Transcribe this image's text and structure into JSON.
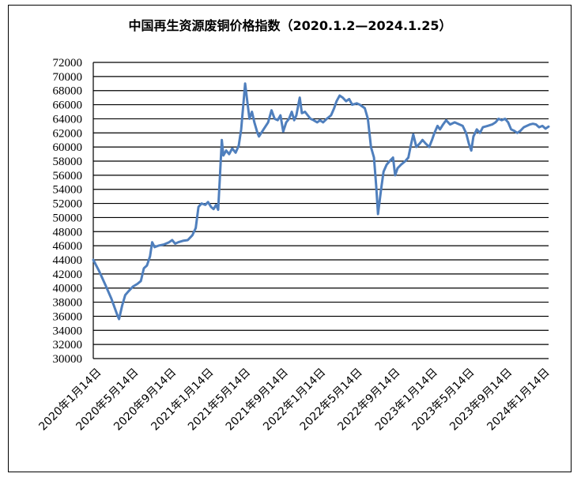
{
  "chart_data": {
    "type": "line",
    "title": "中国再生资源废铜价格指数（2020.1.2—2024.1.25）",
    "xlabel": "",
    "ylabel": "",
    "ylim": [
      30000,
      72000
    ],
    "y_ticks": [
      30000,
      32000,
      34000,
      36000,
      38000,
      40000,
      42000,
      44000,
      46000,
      48000,
      50000,
      52000,
      54000,
      56000,
      58000,
      60000,
      62000,
      64000,
      66000,
      68000,
      70000,
      72000
    ],
    "x_range": [
      "2020-01-02",
      "2024-01-25"
    ],
    "x_tick_labels": [
      "2020年1月14日",
      "2020年5月14日",
      "2020年9月14日",
      "2021年1月14日",
      "2021年5月14日",
      "2021年9月14日",
      "2022年1月14日",
      "2022年5月14日",
      "2022年9月14日",
      "2023年1月14日",
      "2023年5月14日",
      "2023年9月14日",
      "2024年1月14日"
    ],
    "x_tick_dates": [
      "2020-01-14",
      "2020-05-14",
      "2020-09-14",
      "2021-01-14",
      "2021-05-14",
      "2021-09-14",
      "2022-01-14",
      "2022-05-14",
      "2022-09-14",
      "2023-01-14",
      "2023-05-14",
      "2023-09-14",
      "2024-01-14"
    ],
    "grid": true,
    "legend": "none",
    "series": [
      {
        "color": "#4f7fbd",
        "points": [
          [
            "2020-01-02",
            44000
          ],
          [
            "2020-01-20",
            42500
          ],
          [
            "2020-02-10",
            40500
          ],
          [
            "2020-03-01",
            38500
          ],
          [
            "2020-03-20",
            36200
          ],
          [
            "2020-03-26",
            35600
          ],
          [
            "2020-04-05",
            37500
          ],
          [
            "2020-04-15",
            39000
          ],
          [
            "2020-04-25",
            39500
          ],
          [
            "2020-05-10",
            40200
          ],
          [
            "2020-05-25",
            40600
          ],
          [
            "2020-06-05",
            41000
          ],
          [
            "2020-06-15",
            42800
          ],
          [
            "2020-06-25",
            43200
          ],
          [
            "2020-07-05",
            44500
          ],
          [
            "2020-07-12",
            46500
          ],
          [
            "2020-07-20",
            45800
          ],
          [
            "2020-08-01",
            46000
          ],
          [
            "2020-08-20",
            46200
          ],
          [
            "2020-09-05",
            46500
          ],
          [
            "2020-09-15",
            46800
          ],
          [
            "2020-09-25",
            46300
          ],
          [
            "2020-10-05",
            46500
          ],
          [
            "2020-10-20",
            46700
          ],
          [
            "2020-11-05",
            46800
          ],
          [
            "2020-11-20",
            47500
          ],
          [
            "2020-12-01",
            48500
          ],
          [
            "2020-12-10",
            51500
          ],
          [
            "2020-12-20",
            52000
          ],
          [
            "2021-01-01",
            51800
          ],
          [
            "2021-01-10",
            52200
          ],
          [
            "2021-01-20",
            51500
          ],
          [
            "2021-01-28",
            51200
          ],
          [
            "2021-02-05",
            51800
          ],
          [
            "2021-02-12",
            51100
          ],
          [
            "2021-02-18",
            56000
          ],
          [
            "2021-02-24",
            61000
          ],
          [
            "2021-03-01",
            58800
          ],
          [
            "2021-03-10",
            59500
          ],
          [
            "2021-03-20",
            59000
          ],
          [
            "2021-03-30",
            59800
          ],
          [
            "2021-04-10",
            59200
          ],
          [
            "2021-04-20",
            60200
          ],
          [
            "2021-04-28",
            62500
          ],
          [
            "2021-05-06",
            66500
          ],
          [
            "2021-05-11",
            69000
          ],
          [
            "2021-05-18",
            66500
          ],
          [
            "2021-05-25",
            64000
          ],
          [
            "2021-06-02",
            65000
          ],
          [
            "2021-06-10",
            63500
          ],
          [
            "2021-06-20",
            62000
          ],
          [
            "2021-06-25",
            61500
          ],
          [
            "2021-07-10",
            62500
          ],
          [
            "2021-07-25",
            63500
          ],
          [
            "2021-08-05",
            65200
          ],
          [
            "2021-08-15",
            64000
          ],
          [
            "2021-08-25",
            63800
          ],
          [
            "2021-09-03",
            64500
          ],
          [
            "2021-09-12",
            62200
          ],
          [
            "2021-09-22",
            63500
          ],
          [
            "2021-10-01",
            64000
          ],
          [
            "2021-10-10",
            65000
          ],
          [
            "2021-10-18",
            63800
          ],
          [
            "2021-10-25",
            64500
          ],
          [
            "2021-11-05",
            67000
          ],
          [
            "2021-11-12",
            64800
          ],
          [
            "2021-11-22",
            65000
          ],
          [
            "2021-12-01",
            64500
          ],
          [
            "2021-12-10",
            64000
          ],
          [
            "2021-12-20",
            63800
          ],
          [
            "2022-01-01",
            63500
          ],
          [
            "2022-01-10",
            63800
          ],
          [
            "2022-01-20",
            63500
          ],
          [
            "2022-02-01",
            64000
          ],
          [
            "2022-02-15",
            64500
          ],
          [
            "2022-02-25",
            65500
          ],
          [
            "2022-03-05",
            66500
          ],
          [
            "2022-03-15",
            67300
          ],
          [
            "2022-03-25",
            67000
          ],
          [
            "2022-04-05",
            66500
          ],
          [
            "2022-04-15",
            66800
          ],
          [
            "2022-04-25",
            66000
          ],
          [
            "2022-05-10",
            66200
          ],
          [
            "2022-05-20",
            66000
          ],
          [
            "2022-06-05",
            65500
          ],
          [
            "2022-06-15",
            64000
          ],
          [
            "2022-06-25",
            60000
          ],
          [
            "2022-07-05",
            58500
          ],
          [
            "2022-07-12",
            54500
          ],
          [
            "2022-07-18",
            50500
          ],
          [
            "2022-07-28",
            54000
          ],
          [
            "2022-08-05",
            56500
          ],
          [
            "2022-08-15",
            57500
          ],
          [
            "2022-08-25",
            58000
          ],
          [
            "2022-09-05",
            58500
          ],
          [
            "2022-09-12",
            56000
          ],
          [
            "2022-09-20",
            57000
          ],
          [
            "2022-10-01",
            57500
          ],
          [
            "2022-10-15",
            58000
          ],
          [
            "2022-10-25",
            58500
          ],
          [
            "2022-11-01",
            60000
          ],
          [
            "2022-11-10",
            61800
          ],
          [
            "2022-11-20",
            60000
          ],
          [
            "2022-12-01",
            60500
          ],
          [
            "2022-12-10",
            61000
          ],
          [
            "2022-12-20",
            60500
          ],
          [
            "2023-01-01",
            60000
          ],
          [
            "2023-01-10",
            61000
          ],
          [
            "2023-01-18",
            62000
          ],
          [
            "2023-01-28",
            63000
          ],
          [
            "2023-02-05",
            62500
          ],
          [
            "2023-02-15",
            63200
          ],
          [
            "2023-02-25",
            63800
          ],
          [
            "2023-03-10",
            63200
          ],
          [
            "2023-03-25",
            63500
          ],
          [
            "2023-04-10",
            63200
          ],
          [
            "2023-04-20",
            63000
          ],
          [
            "2023-05-01",
            62000
          ],
          [
            "2023-05-10",
            60500
          ],
          [
            "2023-05-18",
            59500
          ],
          [
            "2023-05-25",
            61500
          ],
          [
            "2023-06-05",
            62500
          ],
          [
            "2023-06-15",
            62000
          ],
          [
            "2023-06-25",
            62800
          ],
          [
            "2023-07-10",
            63000
          ],
          [
            "2023-07-25",
            63200
          ],
          [
            "2023-08-05",
            63500
          ],
          [
            "2023-08-15",
            64000
          ],
          [
            "2023-08-25",
            63800
          ],
          [
            "2023-09-05",
            64000
          ],
          [
            "2023-09-15",
            63500
          ],
          [
            "2023-09-25",
            62500
          ],
          [
            "2023-10-05",
            62300
          ],
          [
            "2023-10-15",
            62000
          ],
          [
            "2023-10-25",
            62300
          ],
          [
            "2023-11-05",
            62800
          ],
          [
            "2023-11-15",
            63000
          ],
          [
            "2023-11-25",
            63200
          ],
          [
            "2023-12-05",
            63300
          ],
          [
            "2023-12-15",
            63200
          ],
          [
            "2023-12-25",
            62800
          ],
          [
            "2024-01-05",
            63000
          ],
          [
            "2024-01-15",
            62600
          ],
          [
            "2024-01-25",
            62900
          ]
        ]
      }
    ]
  }
}
